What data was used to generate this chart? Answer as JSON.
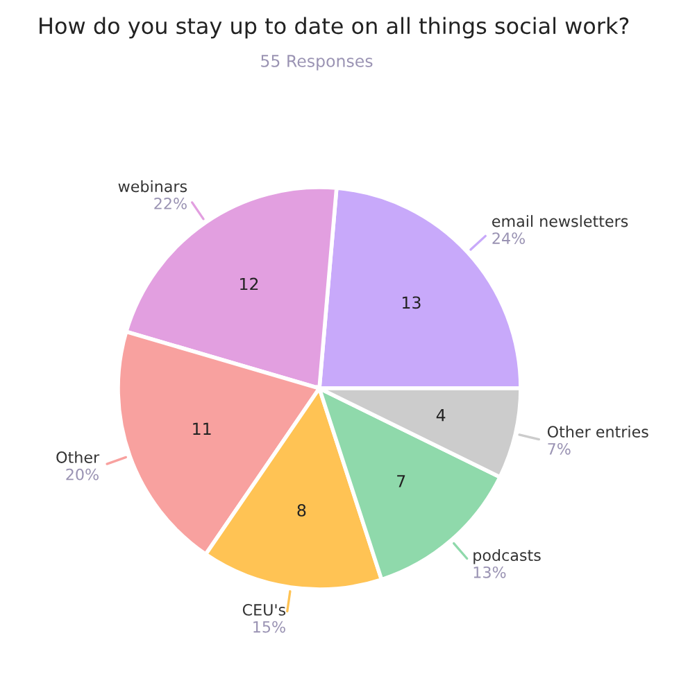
{
  "chart_data": {
    "type": "pie",
    "title": "How do you stay up to date on all things social work?",
    "subtitle": "55 Responses",
    "categories": [
      "email newsletters",
      "webinars",
      "Other",
      "CEU's",
      "podcasts",
      "Other entries"
    ],
    "values": [
      13,
      12,
      11,
      8,
      7,
      4
    ],
    "colors": [
      "#c8a9fa",
      "#e29fe0",
      "#f8a19f",
      "#ffc354",
      "#8fd9ab",
      "#cccccc"
    ],
    "value_labels": [
      "13",
      "12",
      "11",
      "8",
      "7",
      "4"
    ],
    "annotations": [
      "24%",
      "22%",
      "20%",
      "15%",
      "13%",
      "7%"
    ],
    "legend": false
  }
}
